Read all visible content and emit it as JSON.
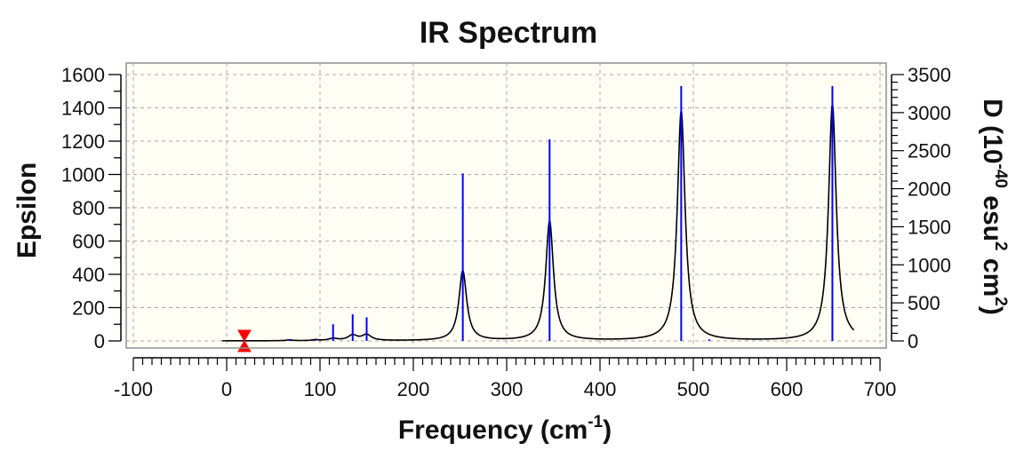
{
  "chart_data": {
    "type": "line",
    "title": "IR Spectrum",
    "xlabel_main": "Frequency (cm",
    "xlabel_sup": "-1",
    "xlabel_end": ")",
    "ylabel": "Epsilon",
    "y2label_parts": [
      "D (10",
      "-40",
      " esu",
      "2",
      " cm",
      "2",
      ")"
    ],
    "xlim": [
      -100,
      700
    ],
    "ylim": [
      0,
      1600
    ],
    "y2lim": [
      0,
      3500
    ],
    "x_ticks": [
      "-100",
      "0",
      "100",
      "200",
      "300",
      "400",
      "500",
      "600",
      "700"
    ],
    "y_ticks": [
      "0",
      "200",
      "400",
      "600",
      "800",
      "1000",
      "1200",
      "1400",
      "1600"
    ],
    "y2_ticks": [
      "0",
      "500",
      "1000",
      "1500",
      "2000",
      "2500",
      "3000",
      "3500"
    ],
    "grid": true,
    "series": [
      {
        "color": "#000000",
        "style": "spectrum",
        "x_range": [
          -5,
          672
        ],
        "baseline": 0,
        "peaks": [
          {
            "x": 67,
            "height": 5,
            "width": 4
          },
          {
            "x": 95,
            "height": 5,
            "width": 4
          },
          {
            "x": 114,
            "height": 12,
            "width": 6
          },
          {
            "x": 135,
            "height": 32,
            "width": 6
          },
          {
            "x": 150,
            "height": 35,
            "width": 6
          },
          {
            "x": 253,
            "height": 420,
            "width": 5
          },
          {
            "x": 346,
            "height": 720,
            "width": 5
          },
          {
            "x": 487,
            "height": 1380,
            "width": 5
          },
          {
            "x": 649,
            "height": 1420,
            "width": 5
          }
        ]
      },
      {
        "color": "#0000ff",
        "style": "sticks",
        "axis": "y2",
        "x": [
          67,
          95,
          114,
          135,
          150,
          253,
          346,
          487,
          517,
          649
        ],
        "y": [
          20,
          20,
          220,
          350,
          310,
          2200,
          2650,
          3350,
          20,
          3350
        ]
      }
    ],
    "marker": {
      "x": 19,
      "y": 0,
      "color": "#ff0000",
      "shape": "hourglass"
    },
    "colors": {
      "plot_bg": "#fffef5",
      "grid": "#a8a8a8",
      "frame": "#909090",
      "axis": "#000000"
    }
  }
}
